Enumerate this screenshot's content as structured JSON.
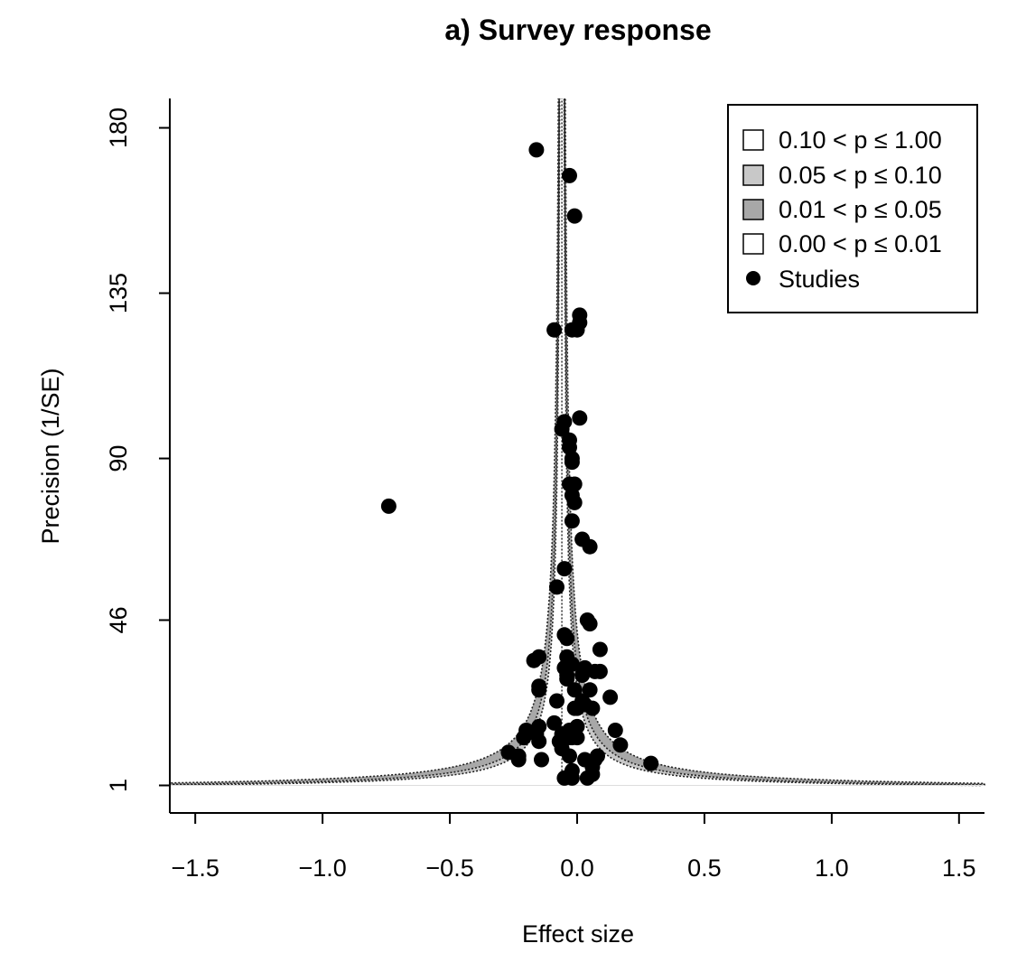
{
  "chart_data": {
    "type": "scatter",
    "title": "a) Survey response",
    "xlabel": "Effect size",
    "ylabel": "Precision (1/SE)",
    "xlim": [
      -1.6,
      1.6
    ],
    "ylim": [
      -6.5,
      188
    ],
    "x_ticks": [
      {
        "value": -1.5,
        "label": "−1.5"
      },
      {
        "value": -1.0,
        "label": "−1.0"
      },
      {
        "value": -0.5,
        "label": "−0.5"
      },
      {
        "value": 0.0,
        "label": "0.0"
      },
      {
        "value": 0.5,
        "label": "0.5"
      },
      {
        "value": 1.0,
        "label": "1.0"
      },
      {
        "value": 1.5,
        "label": "1.5"
      }
    ],
    "y_ticks": [
      {
        "value": 1,
        "label": "1"
      },
      {
        "value": 46,
        "label": "46"
      },
      {
        "value": 90,
        "label": "90"
      },
      {
        "value": 135,
        "label": "135"
      },
      {
        "value": 180,
        "label": "180"
      }
    ],
    "funnel_center": -0.06,
    "contour_bands": [
      {
        "label": "0.10 < p ≤ 1.00",
        "fill": "#ffffff",
        "z_low": 0,
        "z_high": 1.645
      },
      {
        "label": "0.05 < p ≤ 0.10",
        "fill": "#c8c8c8",
        "z_low": 1.645,
        "z_high": 1.96
      },
      {
        "label": "0.01 < p ≤ 0.05",
        "fill": "#a8a8a8",
        "z_low": 1.96,
        "z_high": 2.576
      },
      {
        "label": "0.00 < p ≤ 0.01",
        "fill": "#ffffff",
        "z_low": 2.576,
        "z_high": null
      }
    ],
    "legend": {
      "position": "top-right",
      "points_label": "Studies"
    },
    "grid": false,
    "series": [
      {
        "points": [
          {
            "x": -0.16,
            "y": 174
          },
          {
            "x": -0.03,
            "y": 167
          },
          {
            "x": -0.01,
            "y": 156
          },
          {
            "x": 0.01,
            "y": 129
          },
          {
            "x": 0.01,
            "y": 127
          },
          {
            "x": -0.09,
            "y": 125
          },
          {
            "x": -0.02,
            "y": 125
          },
          {
            "x": 0.0,
            "y": 125
          },
          {
            "x": 0.01,
            "y": 101
          },
          {
            "x": -0.05,
            "y": 100
          },
          {
            "x": -0.06,
            "y": 98
          },
          {
            "x": -0.03,
            "y": 95
          },
          {
            "x": -0.03,
            "y": 93
          },
          {
            "x": -0.02,
            "y": 90
          },
          {
            "x": -0.02,
            "y": 89
          },
          {
            "x": -0.03,
            "y": 83
          },
          {
            "x": -0.01,
            "y": 83
          },
          {
            "x": -0.02,
            "y": 80
          },
          {
            "x": -0.01,
            "y": 78
          },
          {
            "x": -0.74,
            "y": 77
          },
          {
            "x": -0.02,
            "y": 73
          },
          {
            "x": 0.02,
            "y": 68
          },
          {
            "x": 0.05,
            "y": 66
          },
          {
            "x": -0.05,
            "y": 60
          },
          {
            "x": -0.08,
            "y": 55
          },
          {
            "x": 0.04,
            "y": 46
          },
          {
            "x": 0.05,
            "y": 45
          },
          {
            "x": -0.05,
            "y": 42
          },
          {
            "x": -0.04,
            "y": 41
          },
          {
            "x": 0.09,
            "y": 38
          },
          {
            "x": -0.15,
            "y": 36
          },
          {
            "x": -0.04,
            "y": 36
          },
          {
            "x": -0.17,
            "y": 35
          },
          {
            "x": -0.02,
            "y": 34
          },
          {
            "x": -0.05,
            "y": 33
          },
          {
            "x": 0.03,
            "y": 33
          },
          {
            "x": 0.07,
            "y": 32
          },
          {
            "x": 0.09,
            "y": 32
          },
          {
            "x": -0.04,
            "y": 31
          },
          {
            "x": 0.02,
            "y": 31
          },
          {
            "x": -0.04,
            "y": 30
          },
          {
            "x": -0.15,
            "y": 28
          },
          {
            "x": -0.15,
            "y": 27
          },
          {
            "x": -0.01,
            "y": 27
          },
          {
            "x": 0.05,
            "y": 27
          },
          {
            "x": 0.13,
            "y": 25
          },
          {
            "x": -0.08,
            "y": 24
          },
          {
            "x": 0.02,
            "y": 24
          },
          {
            "x": 0.03,
            "y": 23
          },
          {
            "x": 0.0,
            "y": 22
          },
          {
            "x": -0.01,
            "y": 22
          },
          {
            "x": 0.06,
            "y": 22
          },
          {
            "x": -0.09,
            "y": 18
          },
          {
            "x": -0.2,
            "y": 16
          },
          {
            "x": -0.15,
            "y": 17
          },
          {
            "x": 0.0,
            "y": 17
          },
          {
            "x": -0.16,
            "y": 15
          },
          {
            "x": -0.03,
            "y": 16
          },
          {
            "x": 0.15,
            "y": 16
          },
          {
            "x": -0.21,
            "y": 14
          },
          {
            "x": -0.06,
            "y": 15
          },
          {
            "x": -0.03,
            "y": 14
          },
          {
            "x": -0.02,
            "y": 14
          },
          {
            "x": 0.0,
            "y": 14
          },
          {
            "x": -0.15,
            "y": 13
          },
          {
            "x": -0.07,
            "y": 13
          },
          {
            "x": 0.17,
            "y": 12
          },
          {
            "x": -0.06,
            "y": 11
          },
          {
            "x": -0.27,
            "y": 10
          },
          {
            "x": -0.23,
            "y": 9
          },
          {
            "x": -0.23,
            "y": 8
          },
          {
            "x": -0.14,
            "y": 8
          },
          {
            "x": -0.03,
            "y": 9
          },
          {
            "x": 0.03,
            "y": 8
          },
          {
            "x": 0.08,
            "y": 9
          },
          {
            "x": 0.07,
            "y": 8
          },
          {
            "x": 0.29,
            "y": 7
          },
          {
            "x": 0.06,
            "y": 6
          },
          {
            "x": -0.02,
            "y": 5
          },
          {
            "x": 0.06,
            "y": 4
          },
          {
            "x": -0.02,
            "y": 3
          },
          {
            "x": -0.05,
            "y": 3
          },
          {
            "x": 0.04,
            "y": 3
          }
        ]
      }
    ]
  }
}
